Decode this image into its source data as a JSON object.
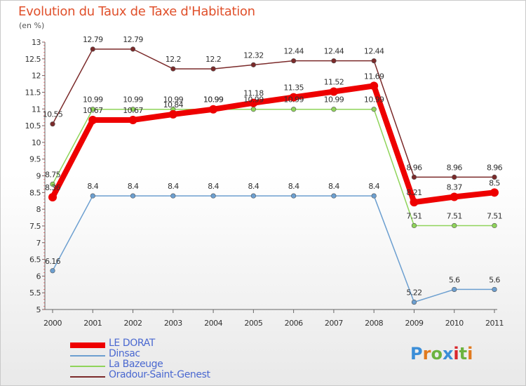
{
  "title": "Evolution du Taux de Taxe d'Habitation",
  "subtitle": "(en %)",
  "logo": "Proxiti",
  "chart_data": {
    "type": "line",
    "title": "Evolution du Taux de Taxe d'Habitation",
    "subtitle": "(en %)",
    "xlabel": "",
    "ylabel": "",
    "ylim": [
      5,
      13
    ],
    "yticks": [
      "5",
      "5.5",
      "6",
      "6.5",
      "7",
      "7.5",
      "8",
      "8.5",
      "9",
      "9.5",
      "10",
      "10.5",
      "11",
      "11.5",
      "12",
      "12.5",
      "13"
    ],
    "categories": [
      "2000",
      "2001",
      "2002",
      "2003",
      "2004",
      "2005",
      "2006",
      "2007",
      "2008",
      "2009",
      "2010",
      "2011"
    ],
    "grid": false,
    "legend": "bottom-left",
    "series": [
      {
        "name": "LE DORAT",
        "color": "#ee0000",
        "width": 8,
        "values": [
          8.36,
          10.67,
          10.67,
          10.84,
          10.99,
          11.18,
          11.35,
          11.52,
          11.69,
          8.21,
          8.37,
          8.5
        ],
        "labels": [
          "8.36",
          "10.67",
          "10.67",
          "10.84",
          "10.99",
          "11.18",
          "11.35",
          "11.52",
          "11.69",
          "8.21",
          "8.37",
          "8.5"
        ]
      },
      {
        "name": "Dinsac",
        "color": "#6c9fd0",
        "width": 1.5,
        "values": [
          6.16,
          8.4,
          8.4,
          8.4,
          8.4,
          8.4,
          8.4,
          8.4,
          8.4,
          5.22,
          5.6,
          5.6
        ],
        "labels": [
          "6.16",
          "8.4",
          "8.4",
          "8.4",
          "8.4",
          "8.4",
          "8.4",
          "8.4",
          "8.4",
          "5.22",
          "5.6",
          "5.6"
        ]
      },
      {
        "name": "La Bazeuge",
        "color": "#8fd45a",
        "width": 1.5,
        "values": [
          8.75,
          10.99,
          10.99,
          10.99,
          10.99,
          10.99,
          10.99,
          10.99,
          10.99,
          7.51,
          7.51,
          7.51
        ],
        "labels": [
          "8.75",
          "10.99",
          "10.99",
          "10.99",
          "10.99",
          "10.99",
          "10.99",
          "10.99",
          "10.99",
          "7.51",
          "7.51",
          "7.51"
        ]
      },
      {
        "name": "Oradour-Saint-Genest",
        "color": "#7b2a2a",
        "width": 1.5,
        "values": [
          10.55,
          12.79,
          12.79,
          12.2,
          12.2,
          12.32,
          12.44,
          12.44,
          12.44,
          8.96,
          8.96,
          8.96
        ],
        "labels": [
          "10.55",
          "12.79",
          "12.79",
          "12.2",
          "12.2",
          "12.32",
          "12.44",
          "12.44",
          "12.44",
          "8.96",
          "8.96",
          "8.96"
        ]
      }
    ]
  }
}
